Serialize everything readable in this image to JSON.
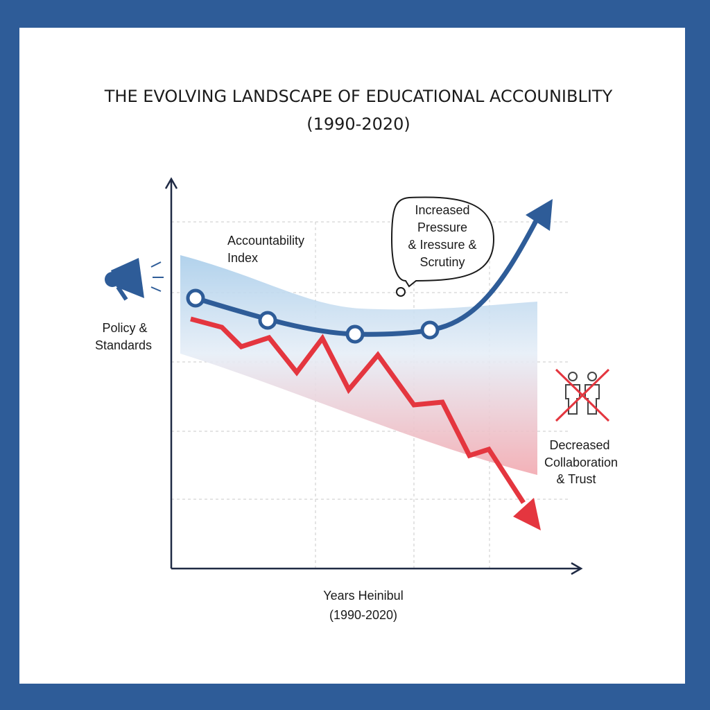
{
  "title": "THE EVOLVING LANDSCAPE OF EDUCATIONAL ACCOUNIBLITY",
  "subtitle": "(1990-2020)",
  "y_label": [
    "Accountability",
    "Index"
  ],
  "side_label": [
    "Policy &",
    "Standards"
  ],
  "callout": [
    "Increased",
    "Pressure",
    "& Iressure &",
    "Scrutiny"
  ],
  "right_label": [
    "Decreased",
    "Collaboration",
    "& Trust"
  ],
  "x_label": [
    "Years Heinibul",
    "(1990-2020)"
  ]
}
